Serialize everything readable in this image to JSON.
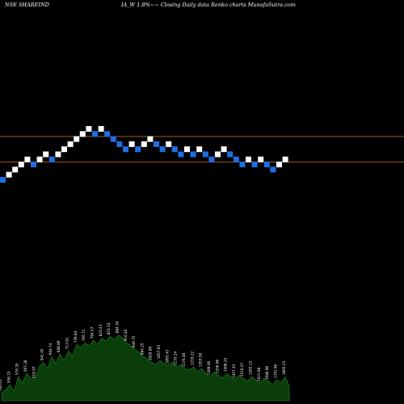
{
  "header": {
    "symbol": "NSE SHAREIND",
    "description": "IA_W 1.8%~~ Closing Daily data  Renko  charts MunafaSutra.com"
  },
  "colors": {
    "background": "#000000",
    "up_brick": "#ffffff",
    "down_brick": "#1e6ee6",
    "level_line": "#b5651d",
    "volume_fill": "#0b3d0b",
    "volume_stroke": "#1c8c1c",
    "volume_label": "#ffffff"
  },
  "chart_data": {
    "type": "renko",
    "brick_size_pct": 1.8,
    "bricks": [
      {
        "dir": "down",
        "level": 0
      },
      {
        "dir": "up",
        "level": 1
      },
      {
        "dir": "up",
        "level": 2
      },
      {
        "dir": "up",
        "level": 3
      },
      {
        "dir": "up",
        "level": 4
      },
      {
        "dir": "down",
        "level": 3
      },
      {
        "dir": "up",
        "level": 4
      },
      {
        "dir": "up",
        "level": 5
      },
      {
        "dir": "down",
        "level": 4
      },
      {
        "dir": "up",
        "level": 5
      },
      {
        "dir": "up",
        "level": 6
      },
      {
        "dir": "up",
        "level": 7
      },
      {
        "dir": "up",
        "level": 8
      },
      {
        "dir": "up",
        "level": 9
      },
      {
        "dir": "up",
        "level": 10
      },
      {
        "dir": "down",
        "level": 9
      },
      {
        "dir": "up",
        "level": 10
      },
      {
        "dir": "down",
        "level": 9
      },
      {
        "dir": "down",
        "level": 8
      },
      {
        "dir": "down",
        "level": 7
      },
      {
        "dir": "down",
        "level": 6
      },
      {
        "dir": "up",
        "level": 7
      },
      {
        "dir": "down",
        "level": 6
      },
      {
        "dir": "up",
        "level": 7
      },
      {
        "dir": "up",
        "level": 8
      },
      {
        "dir": "down",
        "level": 7
      },
      {
        "dir": "down",
        "level": 6
      },
      {
        "dir": "up",
        "level": 7
      },
      {
        "dir": "down",
        "level": 6
      },
      {
        "dir": "down",
        "level": 5
      },
      {
        "dir": "up",
        "level": 6
      },
      {
        "dir": "down",
        "level": 5
      },
      {
        "dir": "up",
        "level": 6
      },
      {
        "dir": "down",
        "level": 5
      },
      {
        "dir": "down",
        "level": 4
      },
      {
        "dir": "up",
        "level": 5
      },
      {
        "dir": "up",
        "level": 6
      },
      {
        "dir": "down",
        "level": 5
      },
      {
        "dir": "down",
        "level": 4
      },
      {
        "dir": "down",
        "level": 3
      },
      {
        "dir": "up",
        "level": 4
      },
      {
        "dir": "down",
        "level": 3
      },
      {
        "dir": "up",
        "level": 4
      },
      {
        "dir": "down",
        "level": 3
      },
      {
        "dir": "down",
        "level": 2
      },
      {
        "dir": "up",
        "level": 3
      },
      {
        "dir": "up",
        "level": 4
      }
    ],
    "support_levels": [
      3.5,
      8.5
    ],
    "volume": [
      {
        "v": 10,
        "label": "536.65"
      },
      {
        "v": 14,
        "label": "546.35"
      },
      {
        "v": 20,
        "label": "556.15"
      },
      {
        "v": 12,
        "label": "566.16"
      },
      {
        "v": 30,
        "label": "576.35"
      },
      {
        "v": 22,
        "label": "586.72"
      },
      {
        "v": 34,
        "label": "597.28"
      },
      {
        "v": 28,
        "label": "608.03"
      },
      {
        "v": 26,
        "label": "618.97"
      },
      {
        "v": 42,
        "label": "630.11"
      },
      {
        "v": 48,
        "label": "641.45"
      },
      {
        "v": 40,
        "label": "652.99"
      },
      {
        "v": 55,
        "label": "664.74"
      },
      {
        "v": 46,
        "label": "676.71"
      },
      {
        "v": 58,
        "label": "688.89"
      },
      {
        "v": 50,
        "label": "701.29"
      },
      {
        "v": 62,
        "label": "713.91"
      },
      {
        "v": 56,
        "label": "726.76"
      },
      {
        "v": 70,
        "label": "739.84"
      },
      {
        "v": 66,
        "label": "753.16"
      },
      {
        "v": 72,
        "label": "766.72"
      },
      {
        "v": 68,
        "label": "780.52"
      },
      {
        "v": 75,
        "label": "794.57"
      },
      {
        "v": 70,
        "label": "808.87"
      },
      {
        "v": 78,
        "label": "823.43"
      },
      {
        "v": 74,
        "label": "838.25"
      },
      {
        "v": 80,
        "label": "853.34"
      },
      {
        "v": 76,
        "label": "868.70"
      },
      {
        "v": 82,
        "label": "884.34"
      },
      {
        "v": 78,
        "label": "900.26"
      },
      {
        "v": 72,
        "label": "916.46"
      },
      {
        "v": 68,
        "label": "932.96"
      },
      {
        "v": 64,
        "label": "949.75"
      },
      {
        "v": 60,
        "label": "966.85"
      },
      {
        "v": 55,
        "label": "984.25"
      },
      {
        "v": 52,
        "label": "1001.97"
      },
      {
        "v": 48,
        "label": "1020.00"
      },
      {
        "v": 45,
        "label": "1038.36"
      },
      {
        "v": 50,
        "label": "1057.05"
      },
      {
        "v": 46,
        "label": "1076.08"
      },
      {
        "v": 44,
        "label": "1095.45"
      },
      {
        "v": 48,
        "label": "1115.17"
      },
      {
        "v": 42,
        "label": "1135.24"
      },
      {
        "v": 45,
        "label": "1155.68"
      },
      {
        "v": 40,
        "label": "1176.48"
      },
      {
        "v": 38,
        "label": "1197.66"
      },
      {
        "v": 42,
        "label": "1219.22"
      },
      {
        "v": 36,
        "label": "1241.16"
      },
      {
        "v": 40,
        "label": "1263.50"
      },
      {
        "v": 34,
        "label": "1286.24"
      },
      {
        "v": 30,
        "label": "1309.40"
      },
      {
        "v": 36,
        "label": "1332.97"
      },
      {
        "v": 32,
        "label": "1356.96"
      },
      {
        "v": 28,
        "label": "1381.39"
      },
      {
        "v": 34,
        "label": "1406.25"
      },
      {
        "v": 30,
        "label": "1431.56"
      },
      {
        "v": 26,
        "label": "1457.33"
      },
      {
        "v": 32,
        "label": "1483.56"
      },
      {
        "v": 28,
        "label": "1510.27"
      },
      {
        "v": 24,
        "label": "1537.45"
      },
      {
        "v": 30,
        "label": "1565.13"
      },
      {
        "v": 26,
        "label": "1593.30"
      },
      {
        "v": 22,
        "label": "1621.98"
      },
      {
        "v": 28,
        "label": "1651.18"
      },
      {
        "v": 24,
        "label": "1680.90"
      },
      {
        "v": 20,
        "label": "1711.16"
      },
      {
        "v": 26,
        "label": "1741.96"
      },
      {
        "v": 22,
        "label": "1773.31"
      },
      {
        "v": 30,
        "label": "1805.23"
      },
      {
        "v": 18,
        "label": "1837.73"
      }
    ]
  }
}
